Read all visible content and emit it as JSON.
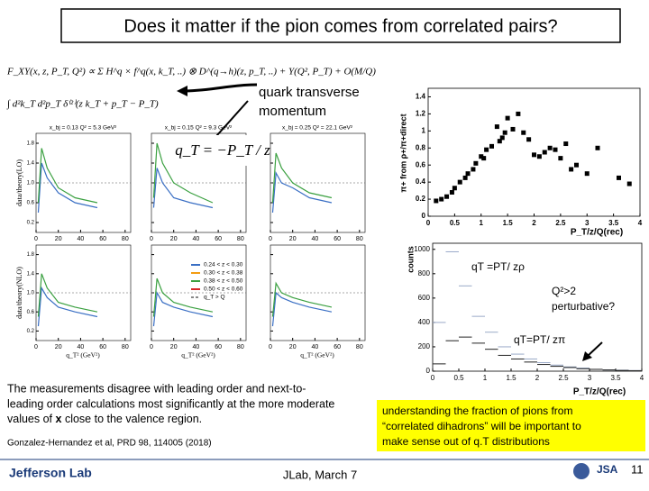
{
  "header": {
    "title": "Does it matter if the pion comes from correlated pairs?"
  },
  "formula": {
    "line1": "F_XY(x, z, P_T, Q²) ∝ Σ H^q × f^q(x, k_T, ..) ⊗ D^(q→h)(z, p_T, ..) + Y(Q², P_T) + O(M/Q)",
    "line2": "∫ d²k_T d²p_T δ⁽²⁾(z k_T + p_T − P_T)"
  },
  "annotation": {
    "lines": [
      "quark transverse",
      "momentum"
    ],
    "qt": "q_T = −P_T / z"
  },
  "left_plots": {
    "xlim": [
      0,
      85
    ],
    "ylim": [
      0,
      2
    ],
    "xticks": [
      0,
      20,
      40,
      60,
      80
    ],
    "yticks": [
      0.2,
      0.6,
      {
        "value": 1,
        "label": "1.0"
      },
      1.4,
      1.8
    ],
    "xlabel": "q_T² (GeV²)",
    "ylabel_top": "data/theory(LO)",
    "ylabel_bottom": "data/theory(NLO)",
    "legend": [
      {
        "name": "0.24 < z < 0.30",
        "color": "#3a6fc4"
      },
      {
        "name": "0.30 < z < 0.38",
        "color": "#f39c12"
      },
      {
        "name": "0.38 < z < 0.50",
        "color": "#3aa040"
      },
      {
        "name": "0.50 < z < 0.60",
        "color": "#d62728"
      },
      {
        "name": "q_T > Q",
        "color": "#888888"
      }
    ],
    "panels": [
      {
        "header": "x_bj = 0.13  Q² = 5.3 GeV²",
        "series": [
          {
            "color": "#3a6fc4",
            "x": [
              2,
              5,
              10,
              20,
              35,
              55
            ],
            "values": [
              0.4,
              1.4,
              1.1,
              0.8,
              0.6,
              0.5
            ]
          },
          {
            "color": "#3aa040",
            "x": [
              2,
              5,
              10,
              20,
              35,
              55
            ],
            "values": [
              0.6,
              1.7,
              1.3,
              0.9,
              0.7,
              0.6
            ]
          }
        ]
      },
      {
        "header": "x_bj = 0.15  Q² = 9.3 GeV²",
        "series": [
          {
            "color": "#3a6fc4",
            "x": [
              2,
              5,
              10,
              20,
              35,
              55
            ],
            "values": [
              0.5,
              1.3,
              1.0,
              0.7,
              0.6,
              0.5
            ]
          },
          {
            "color": "#3aa040",
            "x": [
              2,
              5,
              10,
              20,
              35,
              55
            ],
            "values": [
              0.7,
              1.8,
              1.4,
              1.0,
              0.8,
              0.6
            ]
          }
        ]
      },
      {
        "header": "x_bj = 0.25  Q² = 22.1 GeV²",
        "series": [
          {
            "color": "#3a6fc4",
            "x": [
              2,
              5,
              10,
              20,
              35,
              55
            ],
            "values": [
              0.4,
              1.2,
              1.0,
              0.9,
              0.7,
              0.6
            ]
          },
          {
            "color": "#3aa040",
            "x": [
              2,
              5,
              10,
              20,
              35,
              55
            ],
            "values": [
              0.6,
              1.6,
              1.3,
              1.0,
              0.8,
              0.7
            ]
          }
        ]
      },
      {
        "series": [
          {
            "color": "#3a6fc4",
            "x": [
              2,
              5,
              10,
              20,
              35,
              55
            ],
            "values": [
              0.3,
              1.1,
              0.9,
              0.7,
              0.6,
              0.5
            ]
          },
          {
            "color": "#3aa040",
            "x": [
              2,
              5,
              10,
              20,
              35,
              55
            ],
            "values": [
              0.5,
              1.4,
              1.1,
              0.8,
              0.7,
              0.6
            ]
          }
        ]
      },
      {
        "series": [
          {
            "color": "#3a6fc4",
            "x": [
              2,
              5,
              10,
              20,
              35,
              55
            ],
            "values": [
              0.3,
              1.0,
              0.8,
              0.7,
              0.6,
              0.5
            ]
          },
          {
            "color": "#3aa040",
            "x": [
              2,
              5,
              10,
              20,
              35,
              55
            ],
            "values": [
              0.5,
              1.3,
              1.0,
              0.8,
              0.7,
              0.6
            ]
          }
        ]
      },
      {
        "series": [
          {
            "color": "#3a6fc4",
            "x": [
              2,
              5,
              10,
              20,
              35,
              55
            ],
            "values": [
              0.3,
              1.0,
              0.9,
              0.8,
              0.7,
              0.6
            ]
          },
          {
            "color": "#3aa040",
            "x": [
              2,
              5,
              10,
              20,
              35,
              55
            ],
            "values": [
              0.5,
              1.2,
              1.0,
              0.9,
              0.8,
              0.7
            ]
          }
        ]
      }
    ]
  },
  "scatter_plot": {
    "ylabel": "π+ from ρ+/π+direct",
    "xlabel": "P_T/z/Q(rec)",
    "color": "#000000",
    "xlim": [
      0,
      4
    ],
    "ylim": [
      0,
      1.5
    ],
    "xticks": [
      0,
      0.5,
      1,
      1.5,
      2,
      2.5,
      3,
      3.5,
      4
    ],
    "yticks": [
      0,
      0.2,
      0.4,
      0.6,
      0.8,
      1,
      1.2,
      1.4
    ],
    "x": [
      0.15,
      0.25,
      0.35,
      0.45,
      0.5,
      0.6,
      0.7,
      0.75,
      0.85,
      0.9,
      1.0,
      1.05,
      1.1,
      1.2,
      1.3,
      1.35,
      1.4,
      1.45,
      1.5,
      1.6,
      1.7,
      1.8,
      1.9,
      2.0,
      2.1,
      2.2,
      2.3,
      2.4,
      2.5,
      2.6,
      2.7,
      2.8,
      3.0,
      3.2,
      3.6,
      3.8
    ],
    "values": [
      0.18,
      0.2,
      0.23,
      0.28,
      0.33,
      0.4,
      0.45,
      0.5,
      0.55,
      0.62,
      0.7,
      0.68,
      0.78,
      0.82,
      1.05,
      0.88,
      0.92,
      0.98,
      1.15,
      1.02,
      1.2,
      0.98,
      0.9,
      0.72,
      0.7,
      0.75,
      0.8,
      0.78,
      0.68,
      0.85,
      0.55,
      0.6,
      0.5,
      0.8,
      0.45,
      0.38
    ]
  },
  "histogram": {
    "ylabel": "counts",
    "xlabel": "P_T/z/Q(rec)",
    "xlim": [
      0,
      4
    ],
    "ylim": [
      0,
      1050
    ],
    "xticks": [
      0,
      0.5,
      1,
      1.5,
      2,
      2.5,
      3,
      3.5,
      4
    ],
    "yticks": [
      0,
      200,
      400,
      600,
      800,
      1000
    ],
    "bins": [
      0,
      0.25,
      0.5,
      0.75,
      1,
      1.25,
      1.5,
      1.75,
      2,
      2.25,
      2.5,
      2.75,
      3,
      3.25,
      3.5,
      3.75,
      4
    ],
    "series": [
      {
        "color": "#9aaac8",
        "values": [
          400,
          980,
          700,
          450,
          320,
          200,
          140,
          100,
          70,
          50,
          35,
          25,
          15,
          10,
          8,
          5
        ]
      },
      {
        "color": "#222222",
        "values": [
          60,
          250,
          280,
          230,
          180,
          130,
          100,
          75,
          55,
          40,
          30,
          20,
          15,
          10,
          6,
          4
        ]
      }
    ],
    "labels": {
      "rho": "qT =PT/ zρ",
      "q2": [
        "Q²>2",
        "perturbative?"
      ],
      "pi": "qT=PT/ zπ"
    }
  },
  "paragraph": {
    "lines": [
      "The measurements disagree with leading order and next-to-",
      "leading order calculations most significantly at the more moderate"
    ],
    "last": [
      "values of ",
      "x",
      " close to the valence region."
    ]
  },
  "citation": "Gonzalez-Hernandez et al, PRD 98, 114005 (2018)",
  "callout": {
    "lines": [
      "understanding the fraction of pions from",
      "“correlated dihadrons” will be important to",
      "make sense out of q.T distributions"
    ]
  },
  "footer": {
    "logo": "Jefferson Lab",
    "center": "JLab,  March 7",
    "jsa": "JSA",
    "page": "11"
  }
}
